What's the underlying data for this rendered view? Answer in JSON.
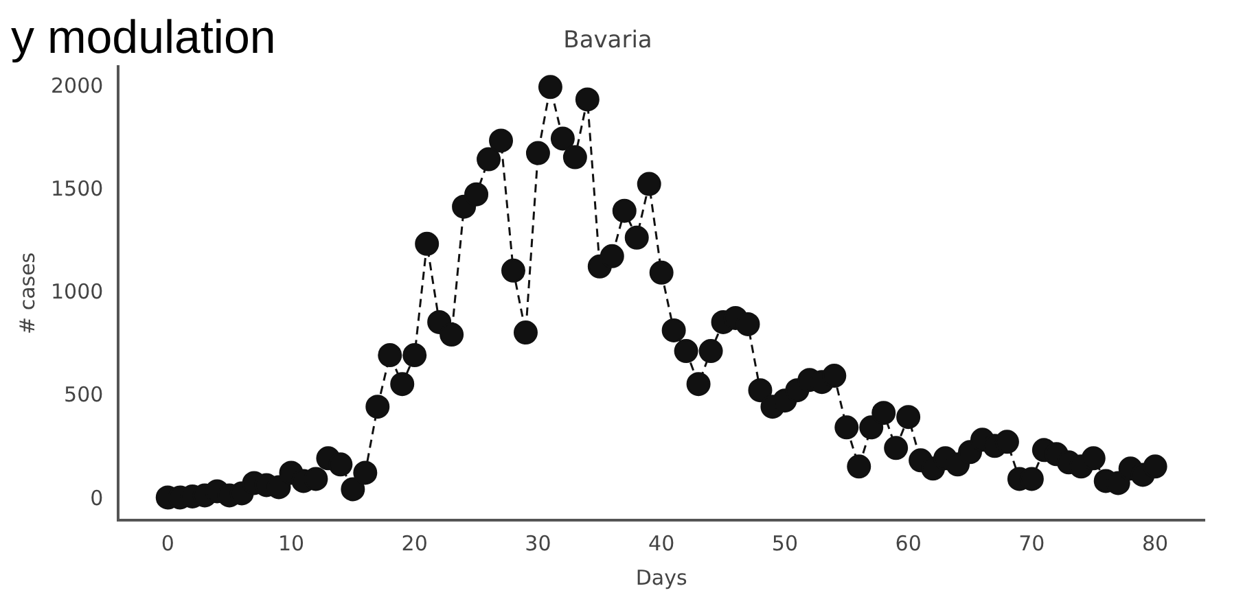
{
  "chart_data": {
    "type": "line",
    "title": "Bavaria",
    "xlabel": "Days",
    "ylabel": "# cases",
    "annotations": [
      "y modulation"
    ],
    "x": [
      0,
      1,
      2,
      3,
      4,
      5,
      6,
      7,
      8,
      9,
      10,
      11,
      12,
      13,
      14,
      15,
      16,
      17,
      18,
      19,
      20,
      21,
      22,
      23,
      24,
      25,
      26,
      27,
      28,
      29,
      30,
      31,
      32,
      33,
      34,
      35,
      36,
      37,
      38,
      39,
      40,
      41,
      42,
      43,
      44,
      45,
      46,
      47,
      48,
      49,
      50,
      51,
      52,
      53,
      54,
      55,
      56,
      57,
      58,
      59,
      60,
      61,
      62,
      63,
      64,
      65,
      66,
      67,
      68,
      69,
      70,
      71,
      72,
      73,
      74,
      75,
      76,
      77,
      78,
      79,
      80
    ],
    "series": [
      {
        "color": "#111111",
        "values": [
          10,
          10,
          15,
          20,
          40,
          20,
          30,
          80,
          70,
          60,
          130,
          90,
          100,
          200,
          170,
          50,
          130,
          450,
          700,
          560,
          700,
          1240,
          860,
          800,
          1420,
          1480,
          1650,
          1740,
          1110,
          810,
          1680,
          2000,
          1750,
          1660,
          1940,
          1130,
          1180,
          1400,
          1270,
          1530,
          1100,
          820,
          720,
          560,
          720,
          860,
          880,
          850,
          530,
          450,
          480,
          530,
          580,
          570,
          600,
          350,
          160,
          350,
          420,
          250,
          400,
          190,
          150,
          200,
          170,
          230,
          290,
          260,
          280,
          100,
          100,
          240,
          220,
          180,
          160,
          200,
          90,
          80,
          150,
          120,
          160
        ]
      }
    ],
    "xlim": [
      -4,
      84
    ],
    "ylim": [
      -100,
      2100
    ],
    "xticks": [
      0,
      10,
      20,
      30,
      40,
      50,
      60,
      70,
      80
    ],
    "yticks": [
      0,
      500,
      1000,
      1500,
      2000
    ],
    "grid": false,
    "legend": false,
    "marker": "circle",
    "line_style": "dashed"
  }
}
